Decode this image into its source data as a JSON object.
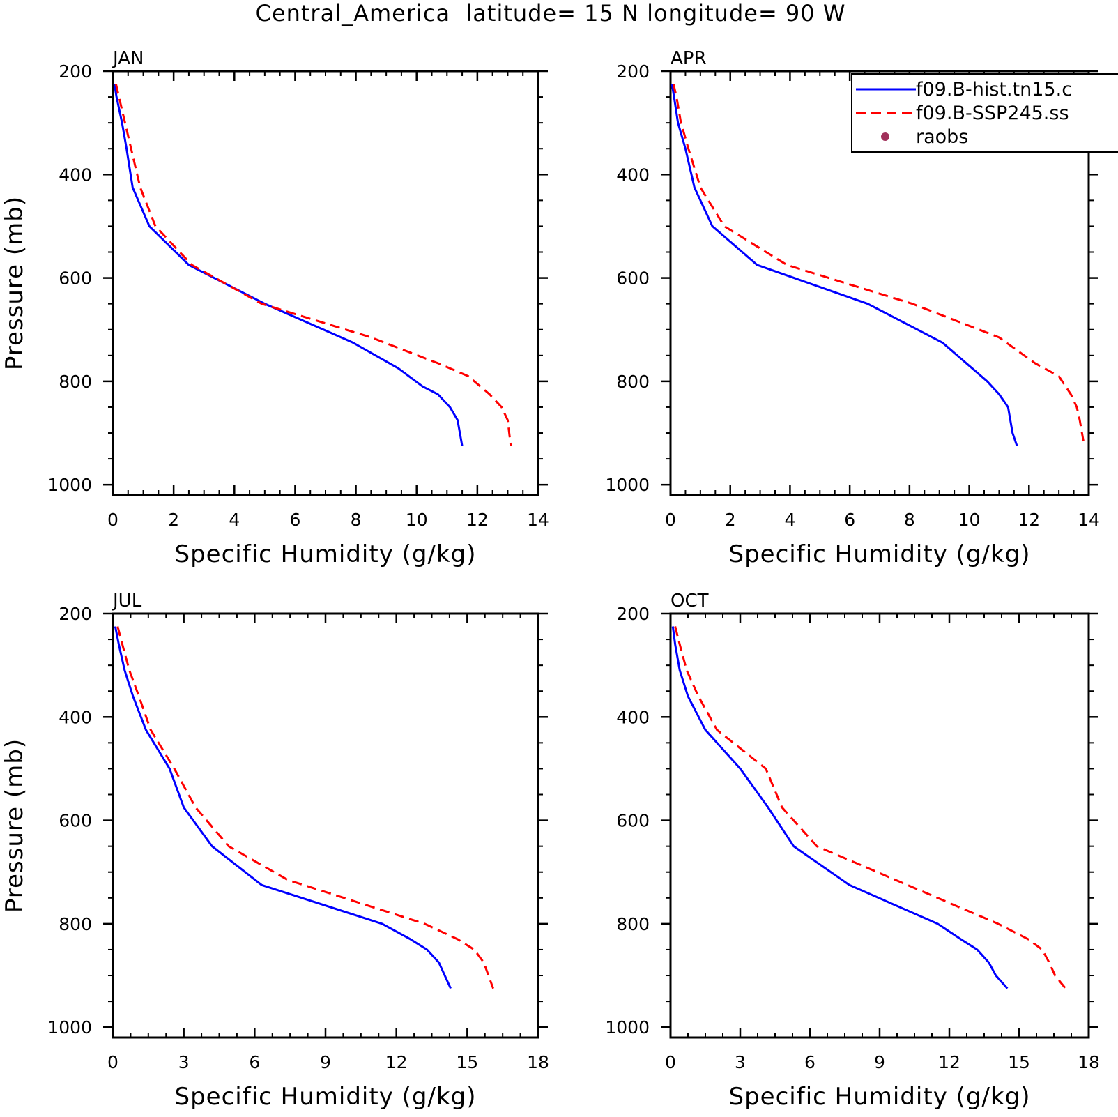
{
  "figure": {
    "title": "Central_America  latitude= 15 N longitude= 90 W"
  },
  "legend": {
    "entries": [
      {
        "label": "f09.B-hist.tn15.c",
        "color": "#0000ff",
        "style": "solid"
      },
      {
        "label": "f09.B-SSP245.ss",
        "color": "#ff0000",
        "style": "dashed"
      },
      {
        "label": "raobs",
        "color": "#a0305a",
        "style": "marker"
      }
    ]
  },
  "colors": {
    "hist": "#0000ff",
    "ssp": "#ff0000",
    "raobs": "#a0305a"
  },
  "chart_data": [
    {
      "type": "line",
      "title": "JAN",
      "xlabel": "Specific Humidity (g/kg)",
      "ylabel": "Pressure (mb)",
      "xlim": [
        0,
        14
      ],
      "ylim": [
        1020,
        200
      ],
      "xticks": [
        0,
        2,
        4,
        6,
        8,
        10,
        12,
        14
      ],
      "yticks": [
        200,
        400,
        600,
        800,
        1000
      ],
      "series": [
        {
          "name": "f09.B-hist.tn15.c",
          "x": [
            0.05,
            0.12,
            0.3,
            0.45,
            0.65,
            1.2,
            2.5,
            5.0,
            7.9,
            9.4,
            10.2,
            10.7,
            11.1,
            11.35,
            11.5
          ],
          "y": [
            225,
            250,
            300,
            350,
            425,
            500,
            575,
            650,
            725,
            775,
            810,
            825,
            850,
            875,
            925
          ]
        },
        {
          "name": "f09.B-SSP245.ss",
          "x": [
            0.1,
            0.2,
            0.4,
            0.6,
            0.9,
            1.4,
            2.6,
            4.9,
            8.5,
            10.7,
            11.7,
            12.4,
            12.8,
            13.0,
            13.1
          ],
          "y": [
            225,
            250,
            300,
            350,
            425,
            500,
            575,
            650,
            715,
            765,
            790,
            825,
            850,
            875,
            925
          ]
        }
      ]
    },
    {
      "type": "line",
      "title": "APR",
      "xlabel": "Specific Humidity (g/kg)",
      "ylabel": "",
      "xlim": [
        0,
        14
      ],
      "ylim": [
        1020,
        200
      ],
      "xticks": [
        0,
        2,
        4,
        6,
        8,
        10,
        12,
        14
      ],
      "yticks": [
        200,
        400,
        600,
        800,
        1000
      ],
      "series": [
        {
          "name": "f09.B-hist.tn15.c",
          "x": [
            0.05,
            0.12,
            0.25,
            0.5,
            0.8,
            1.4,
            2.9,
            6.6,
            9.1,
            10.0,
            10.6,
            11.0,
            11.3,
            11.45,
            11.6
          ],
          "y": [
            225,
            250,
            300,
            350,
            425,
            500,
            575,
            650,
            725,
            770,
            800,
            825,
            850,
            900,
            925
          ]
        },
        {
          "name": "f09.B-SSP245.ss",
          "x": [
            0.1,
            0.2,
            0.35,
            0.6,
            1.0,
            1.8,
            3.9,
            8.1,
            11.0,
            12.2,
            13.0,
            13.4,
            13.6,
            13.7,
            13.85
          ],
          "y": [
            225,
            250,
            300,
            350,
            425,
            500,
            575,
            650,
            715,
            765,
            790,
            825,
            850,
            875,
            925
          ]
        }
      ]
    },
    {
      "type": "line",
      "title": "JUL",
      "xlabel": "Specific Humidity (g/kg)",
      "ylabel": "Pressure (mb)",
      "xlim": [
        0,
        18
      ],
      "ylim": [
        1020,
        200
      ],
      "xticks": [
        0,
        3,
        6,
        9,
        12,
        15,
        18
      ],
      "yticks": [
        200,
        400,
        600,
        800,
        1000
      ],
      "series": [
        {
          "name": "f09.B-hist.tn15.c",
          "x": [
            0.1,
            0.25,
            0.5,
            0.85,
            1.4,
            2.4,
            3.0,
            4.2,
            6.3,
            11.4,
            12.6,
            13.3,
            13.8,
            14.05,
            14.3
          ],
          "y": [
            225,
            260,
            310,
            360,
            425,
            500,
            575,
            650,
            725,
            800,
            830,
            850,
            875,
            900,
            925
          ]
        },
        {
          "name": "f09.B-SSP245.ss",
          "x": [
            0.2,
            0.4,
            0.7,
            1.1,
            1.6,
            2.6,
            3.5,
            4.9,
            7.4,
            13.2,
            14.6,
            15.3,
            15.7,
            15.9,
            16.1
          ],
          "y": [
            225,
            260,
            310,
            360,
            425,
            500,
            575,
            650,
            715,
            800,
            830,
            850,
            875,
            900,
            925
          ]
        }
      ]
    },
    {
      "type": "line",
      "title": "OCT",
      "xlabel": "Specific Humidity (g/kg)",
      "ylabel": "",
      "xlim": [
        0,
        18
      ],
      "ylim": [
        1020,
        200
      ],
      "xticks": [
        0,
        3,
        6,
        9,
        12,
        15,
        18
      ],
      "yticks": [
        200,
        400,
        600,
        800,
        1000
      ],
      "series": [
        {
          "name": "f09.B-hist.tn15.c",
          "x": [
            0.1,
            0.2,
            0.4,
            0.75,
            1.5,
            3.0,
            4.2,
            5.3,
            7.7,
            11.5,
            12.5,
            13.2,
            13.7,
            14.0,
            14.5
          ],
          "y": [
            225,
            260,
            310,
            360,
            425,
            500,
            575,
            650,
            725,
            800,
            830,
            850,
            875,
            900,
            925
          ]
        },
        {
          "name": "f09.B-SSP245.ss",
          "x": [
            0.2,
            0.4,
            0.7,
            1.2,
            2.0,
            4.1,
            4.8,
            6.3,
            10.2,
            14.1,
            15.4,
            16.0,
            16.3,
            16.55,
            17.0
          ],
          "y": [
            225,
            260,
            310,
            360,
            425,
            500,
            575,
            650,
            725,
            800,
            830,
            850,
            875,
            900,
            925
          ]
        }
      ]
    }
  ]
}
